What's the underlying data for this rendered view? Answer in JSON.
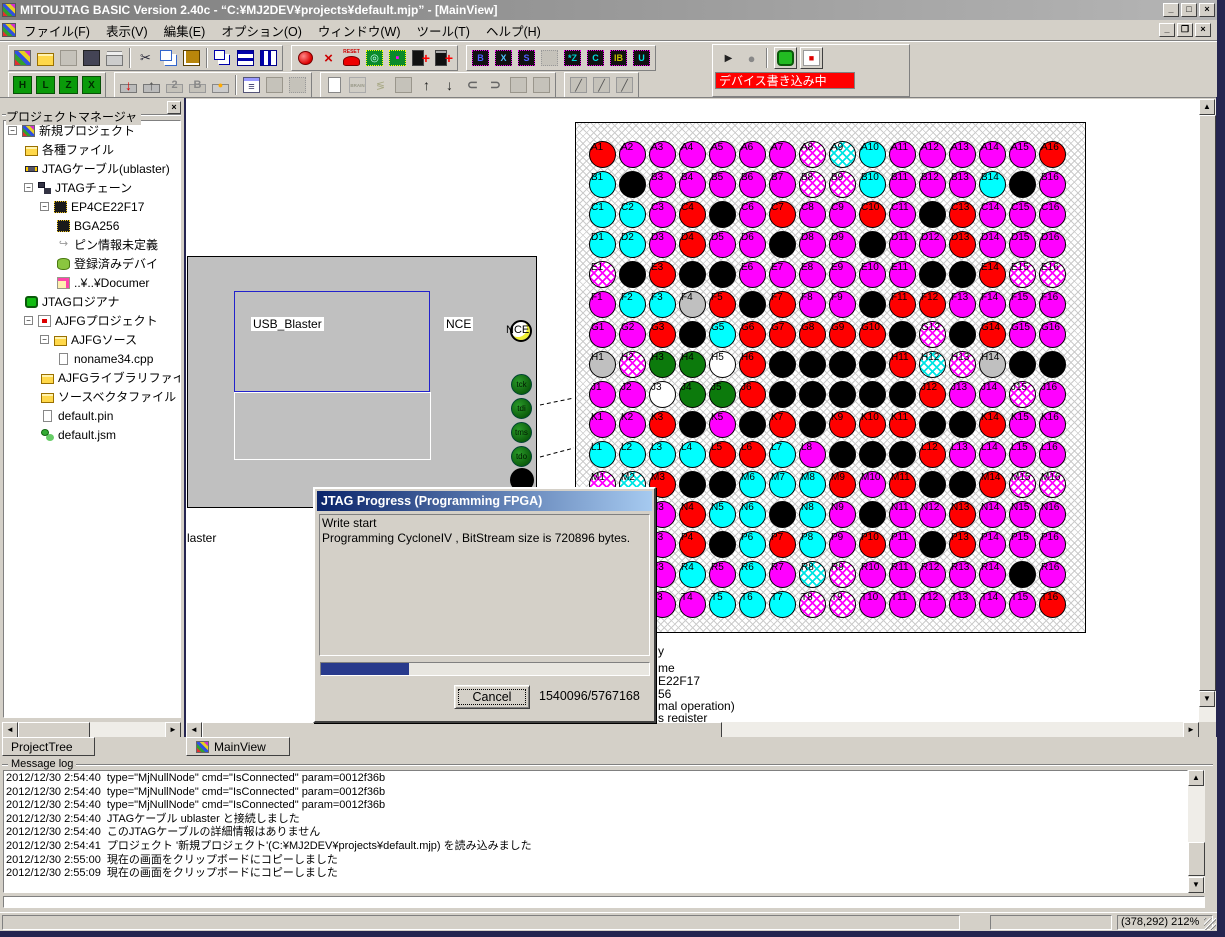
{
  "window": {
    "title": "MITOUJTAG BASIC Version 2.40c - “C:¥MJ2DEV¥projects¥default.mjp” - [MainView]",
    "minimize": "_",
    "maximize": "□",
    "close": "×",
    "child_minimize": "_",
    "child_restore": "❐",
    "child_close": "×"
  },
  "menu": {
    "items": [
      {
        "name": "file",
        "label": "ファイル(F)"
      },
      {
        "name": "view",
        "label": "表示(V)"
      },
      {
        "name": "edit",
        "label": "編集(E)"
      },
      {
        "name": "option",
        "label": "オプション(O)"
      },
      {
        "name": "window",
        "label": "ウィンドウ(W)"
      },
      {
        "name": "tool",
        "label": "ツール(T)"
      },
      {
        "name": "help",
        "label": "ヘルプ(H)"
      }
    ]
  },
  "toolbar": {
    "row1_groups": [
      [
        {
          "name": "new-project",
          "k": "grid"
        },
        {
          "name": "open-file",
          "k": "folder"
        },
        {
          "name": "save-disabled",
          "k": "graysq"
        },
        {
          "name": "save-project",
          "k": "chipbox"
        },
        {
          "name": "print",
          "k": "print"
        },
        {
          "sep": 1
        },
        {
          "name": "cut",
          "k": "cut"
        },
        {
          "name": "copy",
          "k": "copy"
        },
        {
          "name": "paste",
          "k": "paste"
        },
        {
          "sep": 1
        },
        {
          "name": "cascade-windows",
          "k": "wincasc"
        },
        {
          "name": "tile-horizontal",
          "k": "winh"
        },
        {
          "name": "tile-vertical",
          "k": "winv"
        }
      ],
      [
        {
          "name": "connect-cable",
          "k": "pinred"
        },
        {
          "name": "disconnect-cable",
          "k": "pinx"
        },
        {
          "name": "reset-device",
          "k": "reset"
        },
        {
          "name": "autodetect-chain",
          "k": "chipscan"
        },
        {
          "name": "chain-config",
          "k": "chipcfg"
        },
        {
          "name": "add-device",
          "k": "chipadd"
        },
        {
          "name": "add-device-from-list",
          "k": "chipadd2"
        }
      ],
      [
        {
          "name": "bscan-b",
          "k": "bscan",
          "t": "B",
          "c": "#5060ff"
        },
        {
          "name": "bscan-x",
          "k": "bscan",
          "t": "X",
          "c": "#50c0ff"
        },
        {
          "name": "bscan-s",
          "k": "bscan",
          "t": "S",
          "c": "#5060ff"
        },
        {
          "name": "bscan-disabled",
          "k": "bscandim"
        },
        {
          "name": "bscan-z",
          "k": "bscan",
          "t": "*Z",
          "c": "#00d0d0"
        },
        {
          "name": "bscan-c",
          "k": "bscan",
          "t": "C",
          "c": "#00e0e0"
        },
        {
          "name": "bscan-ib",
          "k": "bscan",
          "t": "IB",
          "c": "#c0c000"
        },
        {
          "name": "bscan-u",
          "k": "bscan",
          "t": "U",
          "c": "#00e0e0"
        }
      ]
    ],
    "row2_groups": [
      [
        {
          "name": "wave-high",
          "k": "wave",
          "t": "H"
        },
        {
          "name": "wave-low",
          "k": "wave",
          "t": "L"
        },
        {
          "name": "wave-z",
          "k": "wave",
          "t": "Z"
        },
        {
          "name": "wave-x",
          "k": "wave",
          "t": "X"
        }
      ],
      [
        {
          "name": "program-device",
          "k": "progdn"
        },
        {
          "name": "read-device",
          "k": "progup"
        },
        {
          "name": "program-2",
          "k": "prog2",
          "t": "2"
        },
        {
          "name": "program-b",
          "k": "prog2",
          "t": "B"
        },
        {
          "name": "alert-device",
          "k": "bell"
        },
        {
          "sep": 1
        },
        {
          "name": "register-list",
          "k": "list"
        },
        {
          "name": "blank-1",
          "k": "graysq"
        },
        {
          "name": "chip-disabled",
          "k": "chipdim"
        }
      ],
      [
        {
          "name": "new-document",
          "k": "doc"
        },
        {
          "name": "brain",
          "k": "brain"
        },
        {
          "name": "flash-disabled",
          "k": "flashdim"
        },
        {
          "name": "blank-2",
          "k": "graysq"
        },
        {
          "name": "move-up",
          "k": "arr",
          "g": "↑"
        },
        {
          "name": "move-down",
          "k": "arr",
          "g": "↓"
        },
        {
          "name": "connector-left",
          "k": "plug",
          "g": "⊂"
        },
        {
          "name": "connector-right",
          "k": "plug",
          "g": "⊃"
        },
        {
          "name": "blank-3",
          "k": "graysq"
        },
        {
          "name": "blank-4",
          "k": "graysq"
        }
      ],
      [
        {
          "name": "pen-1",
          "k": "pen"
        },
        {
          "name": "pen-2",
          "k": "pen"
        },
        {
          "name": "pen-3",
          "k": "pen"
        }
      ]
    ],
    "run_controls": [
      {
        "name": "run",
        "k": "play"
      },
      {
        "name": "stop",
        "k": "stopdim"
      },
      {
        "name": "logiana-led",
        "k": "ledg"
      },
      {
        "name": "ajfg-led",
        "k": "ledr"
      }
    ],
    "write_status": "デバイス書き込み中",
    "write_status_bg": "#ff0000"
  },
  "project_panel": {
    "title": "プロジェクトマネージャ",
    "close": "×",
    "tree": [
      {
        "name": "new-project",
        "label": "新規プロジェクト",
        "level": 0,
        "icon": "grid",
        "exp": true
      },
      {
        "name": "various-files",
        "label": "各種ファイル",
        "level": 1,
        "icon": "folder"
      },
      {
        "name": "jtag-cable",
        "label": "JTAGケーブル(ublaster)",
        "level": 1,
        "icon": "cable"
      },
      {
        "name": "jtag-chain",
        "label": "JTAGチェーン",
        "level": 1,
        "icon": "chain",
        "exp": true
      },
      {
        "name": "device-ep4ce22f17",
        "label": "EP4CE22F17",
        "level": 2,
        "icon": "chip",
        "exp": true
      },
      {
        "name": "bga256",
        "label": "BGA256",
        "level": 3,
        "icon": "chip"
      },
      {
        "name": "pin-info-undefined",
        "label": "ピン情報未定義",
        "level": 3,
        "icon": "arrow"
      },
      {
        "name": "registered-device",
        "label": "登録済みデバイ",
        "level": 3,
        "icon": "db"
      },
      {
        "name": "documents-path",
        "label": "..¥..¥Documer",
        "level": 3,
        "icon": "map"
      },
      {
        "name": "jtag-logiana",
        "label": "JTAGロジアナ",
        "level": 1,
        "icon": "led"
      },
      {
        "name": "ajfg-project",
        "label": "AJFGプロジェクト",
        "level": 1,
        "icon": "ajfg",
        "exp": true
      },
      {
        "name": "ajfg-source",
        "label": "AJFGソース",
        "level": 2,
        "icon": "folder",
        "exp": true
      },
      {
        "name": "noname34-cpp",
        "label": "noname34.cpp",
        "level": 3,
        "icon": "doc"
      },
      {
        "name": "ajfg-library",
        "label": "AJFGライブラリファイ",
        "level": 2,
        "icon": "folder"
      },
      {
        "name": "source-vector",
        "label": "ソースベクタファイル",
        "level": 2,
        "icon": "folder"
      },
      {
        "name": "default-pin",
        "label": "default.pin",
        "level": 2,
        "icon": "doc"
      },
      {
        "name": "default-jsm",
        "label": "default.jsm",
        "level": 2,
        "icon": "gears"
      }
    ]
  },
  "tabs": [
    {
      "name": "project-tree",
      "label": "ProjectTree"
    },
    {
      "name": "main-view",
      "label": "MainView"
    }
  ],
  "schematic": {
    "block_label": "USB_Blaster",
    "nce_label": "NCE",
    "nce_pin_label": "NCE",
    "jtag_pins": [
      "tck",
      "tdi",
      "tms",
      "tdo"
    ],
    "clipped_label": "laster"
  },
  "bga": {
    "rows": [
      "A",
      "B",
      "C",
      "D",
      "E",
      "F",
      "G",
      "H",
      "J",
      "K",
      "L",
      "M",
      "N",
      "P",
      "R",
      "T"
    ],
    "cols": 16,
    "matrix": [
      "R M M M M M M HM HC C M M M M M R",
      "C K M M M M M HM HM C M M M C K M",
      "C C M R K M R M M R M K R M M M",
      "C C M R M M K M M K M M R M M M",
      "HM K R K K M M M M M M K K R HM HM",
      "M C C G R K R M M K R R M M M M",
      "M M R K C R R R R R K HM K R M M",
      "G HM E E W R K K K K R HC HM G K K",
      "M M W E E R K K K K K R M M HM M",
      "M M R K M K R K R R R K K R M M",
      "C C C C R R C M K K K R M M M M",
      "HM HC R K K C C C R M R K K R HM HM",
      "M M M R C C K C M K M M R M M M",
      "M M M R K C R C M R M K R M M M",
      "M M M C M C M HC HM M M M M M K M",
      "M M M M C C C HM HM M M M M M M R"
    ],
    "legend": {
      "M": "#ff00ff",
      "R": "#ff0000",
      "C": "#00ffff",
      "K": "#000000",
      "G": "#c0c0c0",
      "W": "#ffffff",
      "E": "#0c7a0c",
      "HM": "hatch-magenta",
      "HC": "hatch-cyan"
    }
  },
  "device_info_fragments": [
    "y",
    "me",
    "E22F17",
    "56",
    "mal operation)",
    "s register"
  ],
  "dialog": {
    "title": "JTAG Progress (Programming FPGA)",
    "lines": [
      "Write start",
      "Programming CycloneIV , BitStream size is 720896 bytes."
    ],
    "progress_percent": 26.7,
    "cancel_label": "Cancel",
    "counter": "1540096/5767168"
  },
  "message_log": {
    "title": "Message log",
    "entries": [
      "2012/12/30 2:54:40  type=\"MjNullNode\" cmd=\"IsConnected\" param=0012f36b",
      "2012/12/30 2:54:40  type=\"MjNullNode\" cmd=\"IsConnected\" param=0012f36b",
      "2012/12/30 2:54:40  type=\"MjNullNode\" cmd=\"IsConnected\" param=0012f36b",
      "2012/12/30 2:54:40  JTAGケーブル ublaster と接続しました",
      "2012/12/30 2:54:40  このJTAGケーブルの詳細情報はありません",
      "2012/12/30 2:54:41  プロジェクト '新規プロジェクト'(C:¥MJ2DEV¥projects¥default.mjp) を読み込みました",
      "2012/12/30 2:55:00  現在の画面をクリップボードにコピーしました",
      "2012/12/30 2:55:09  現在の画面をクリップボードにコピーしました"
    ]
  },
  "status_bar": {
    "coords": "(378,292) 212%"
  }
}
